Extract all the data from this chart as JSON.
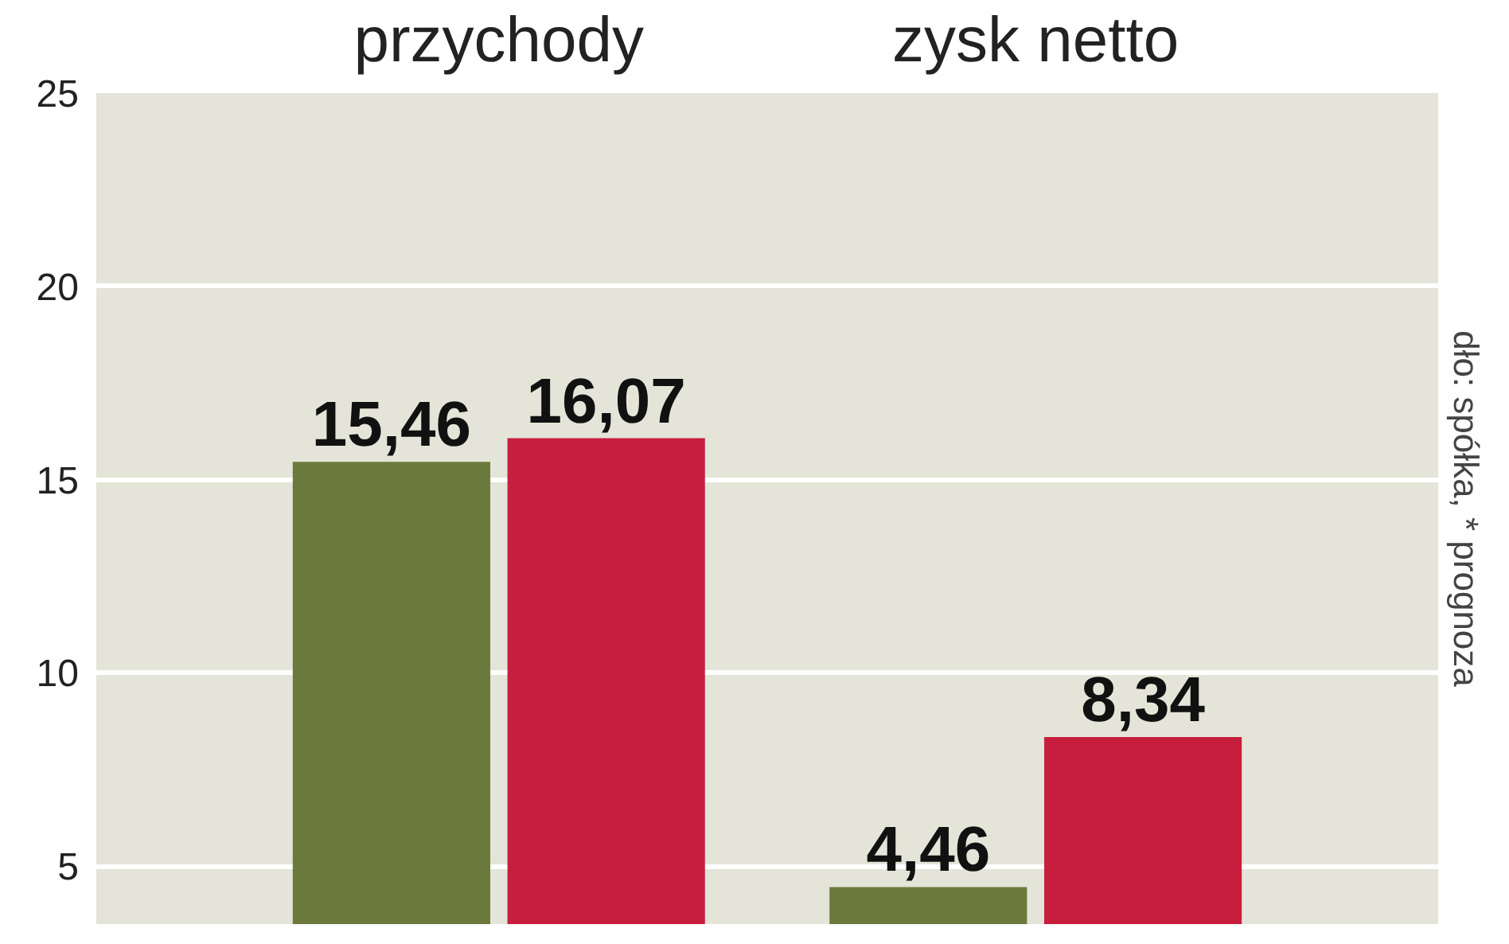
{
  "chart_data": {
    "type": "bar",
    "categories": [
      "przychody",
      "zysk netto"
    ],
    "series": [
      {
        "color": "#6b7a3c",
        "values": [
          15.46,
          4.46
        ],
        "value_labels": [
          "15,46",
          "4,46"
        ]
      },
      {
        "color": "#c81e3e",
        "values": [
          16.07,
          8.34
        ],
        "value_labels": [
          "16,07",
          "8,34"
        ]
      }
    ],
    "ylim": [
      3.5,
      25
    ],
    "yticks": [
      5,
      10,
      15,
      20,
      25
    ],
    "grid": "y",
    "annotations": [
      "dło: spółka, * prognoza"
    ]
  }
}
